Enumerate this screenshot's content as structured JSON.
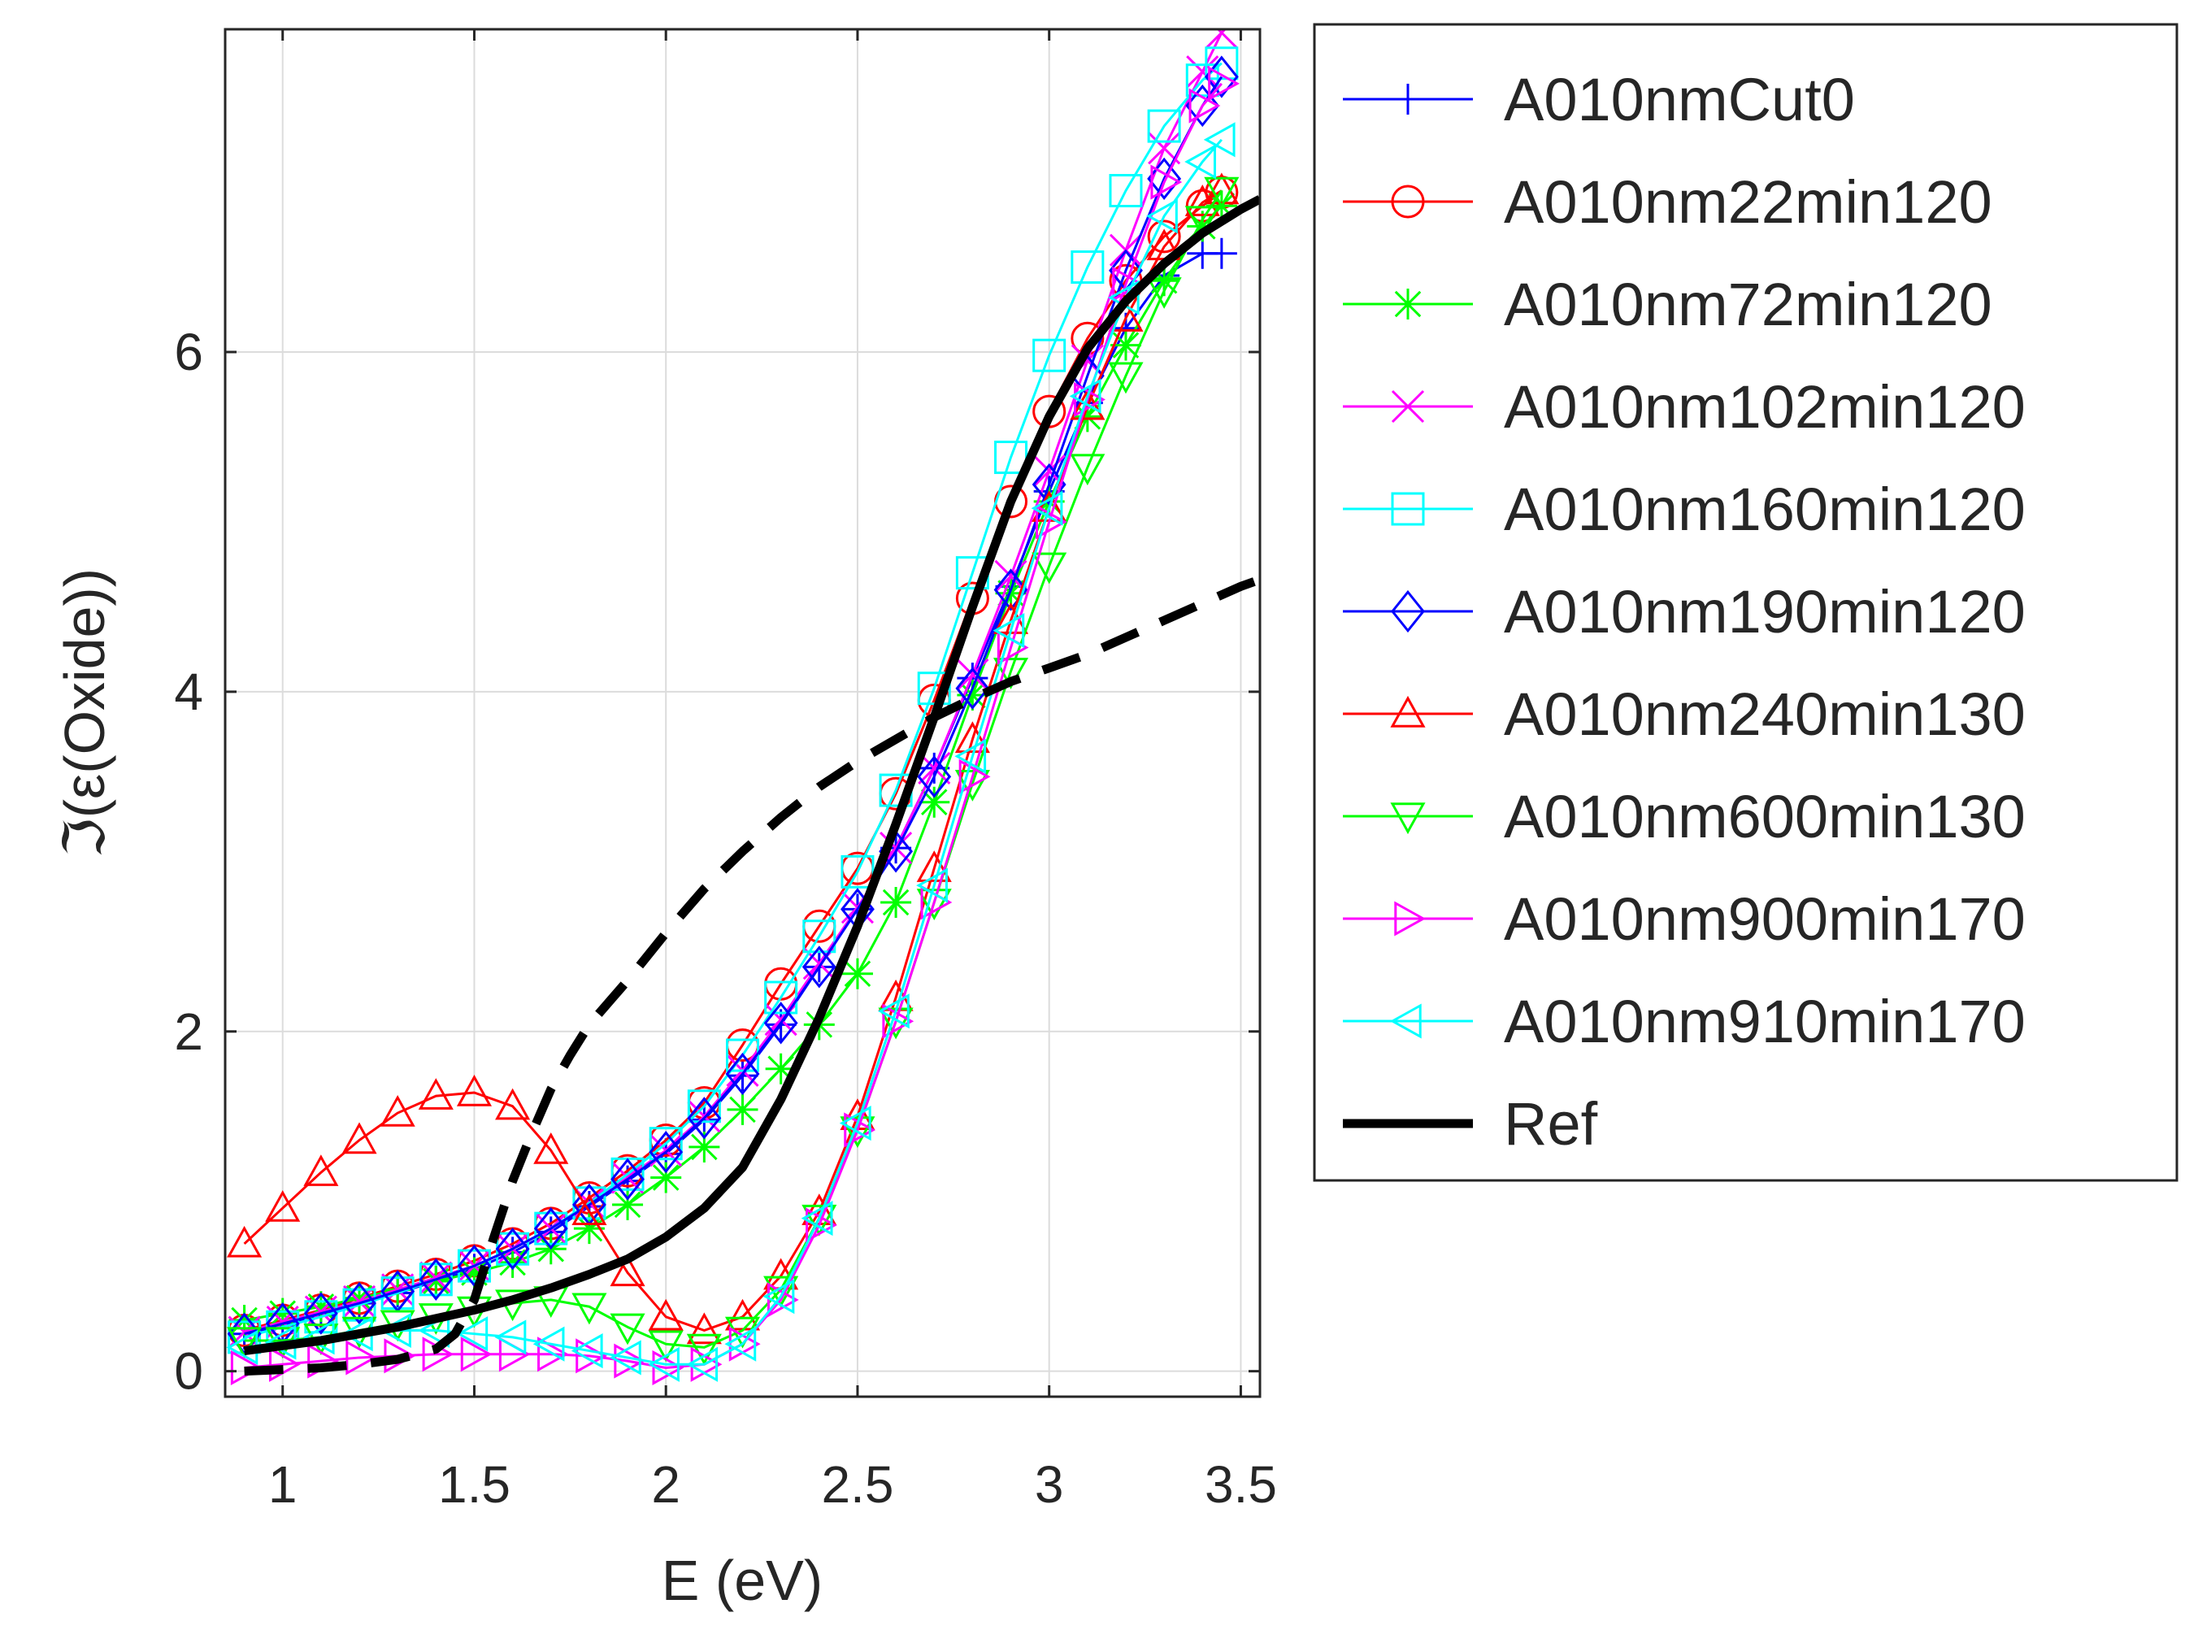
{
  "chart_data": {
    "type": "line",
    "title": "",
    "xlabel": "E (eV)",
    "ylabel": "ℑ(ε(Oxide))",
    "xlim": [
      0.85,
      3.55
    ],
    "ylim": [
      -0.15,
      7.9
    ],
    "xticks": [
      1,
      1.5,
      2,
      2.5,
      3,
      3.5
    ],
    "xtick_labels": [
      "1",
      "1.5",
      "2",
      "2.5",
      "3",
      "3.5"
    ],
    "yticks": [
      0,
      2,
      4,
      6
    ],
    "ytick_labels": [
      "0",
      "2",
      "4",
      "6"
    ],
    "grid": true,
    "legend_position": "outside-right",
    "x": [
      0.9,
      1.0,
      1.1,
      1.2,
      1.3,
      1.4,
      1.5,
      1.6,
      1.7,
      1.8,
      1.9,
      2.0,
      2.1,
      2.2,
      2.3,
      2.4,
      2.5,
      2.6,
      2.7,
      2.8,
      2.9,
      3.0,
      3.1,
      3.2,
      3.3,
      3.4,
      3.45
    ],
    "series": [
      {
        "name": "A010nmCut0",
        "color": "#0000ff",
        "marker": "plus",
        "values": [
          0.22,
          0.27,
          0.33,
          0.4,
          0.46,
          0.53,
          0.6,
          0.7,
          0.82,
          0.97,
          1.12,
          1.28,
          1.48,
          1.74,
          2.04,
          2.38,
          2.72,
          3.08,
          3.55,
          4.08,
          4.62,
          5.18,
          5.7,
          6.14,
          6.45,
          6.58,
          6.58
        ]
      },
      {
        "name": "A010nm22min120",
        "color": "#ff0000",
        "marker": "circle",
        "values": [
          0.24,
          0.3,
          0.36,
          0.43,
          0.5,
          0.57,
          0.65,
          0.75,
          0.87,
          1.02,
          1.18,
          1.36,
          1.58,
          1.92,
          2.28,
          2.62,
          2.96,
          3.4,
          3.95,
          4.55,
          5.12,
          5.65,
          6.08,
          6.42,
          6.68,
          6.86,
          6.94
        ]
      },
      {
        "name": "A010nm72min120",
        "color": "#00ff00",
        "marker": "asterisk",
        "values": [
          0.3,
          0.34,
          0.38,
          0.43,
          0.48,
          0.53,
          0.58,
          0.64,
          0.72,
          0.84,
          0.98,
          1.14,
          1.32,
          1.54,
          1.78,
          2.04,
          2.34,
          2.76,
          3.35,
          3.98,
          4.58,
          5.12,
          5.62,
          6.04,
          6.42,
          6.74,
          6.86
        ]
      },
      {
        "name": "A010nm102min120",
        "color": "#ff00ff",
        "marker": "x",
        "values": [
          0.23,
          0.29,
          0.35,
          0.41,
          0.48,
          0.55,
          0.62,
          0.72,
          0.84,
          0.99,
          1.14,
          1.3,
          1.5,
          1.77,
          2.07,
          2.4,
          2.73,
          3.08,
          3.55,
          4.1,
          4.68,
          5.3,
          5.95,
          6.6,
          7.2,
          7.65,
          7.88
        ]
      },
      {
        "name": "A010nm160min120",
        "color": "#00ffff",
        "marker": "square",
        "values": [
          0.2,
          0.26,
          0.32,
          0.39,
          0.46,
          0.54,
          0.62,
          0.72,
          0.84,
          0.99,
          1.16,
          1.34,
          1.56,
          1.86,
          2.2,
          2.56,
          2.94,
          3.42,
          4.02,
          4.7,
          5.38,
          5.98,
          6.5,
          6.95,
          7.33,
          7.6,
          7.7
        ]
      },
      {
        "name": "A010nm190min120",
        "color": "#0000ff",
        "marker": "diamond",
        "values": [
          0.22,
          0.28,
          0.34,
          0.4,
          0.47,
          0.54,
          0.62,
          0.72,
          0.84,
          0.98,
          1.13,
          1.29,
          1.49,
          1.75,
          2.05,
          2.38,
          2.72,
          3.06,
          3.5,
          4.02,
          4.6,
          5.22,
          5.86,
          6.48,
          7.02,
          7.45,
          7.62
        ]
      },
      {
        "name": "A010nm240min130",
        "color": "#ff0000",
        "marker": "triangle-up",
        "values": [
          0.75,
          0.96,
          1.17,
          1.36,
          1.52,
          1.62,
          1.64,
          1.56,
          1.3,
          0.94,
          0.58,
          0.32,
          0.24,
          0.32,
          0.56,
          0.94,
          1.5,
          2.2,
          2.96,
          3.72,
          4.42,
          5.08,
          5.68,
          6.2,
          6.62,
          6.88,
          6.95
        ]
      },
      {
        "name": "A010nm600min130",
        "color": "#00ff00",
        "marker": "triangle-down",
        "values": [
          0.18,
          0.18,
          0.2,
          0.24,
          0.28,
          0.32,
          0.36,
          0.4,
          0.42,
          0.38,
          0.26,
          0.16,
          0.14,
          0.24,
          0.48,
          0.9,
          1.42,
          2.06,
          2.76,
          3.46,
          4.12,
          4.74,
          5.32,
          5.86,
          6.36,
          6.78,
          6.95
        ]
      },
      {
        "name": "A010nm900min170",
        "color": "#ff00ff",
        "marker": "triangle-right",
        "values": [
          0.02,
          0.04,
          0.06,
          0.08,
          0.09,
          0.1,
          0.1,
          0.1,
          0.1,
          0.09,
          0.06,
          0.02,
          0.04,
          0.16,
          0.42,
          0.86,
          1.42,
          2.06,
          2.76,
          3.5,
          4.26,
          5.0,
          5.72,
          6.4,
          7.0,
          7.45,
          7.58
        ]
      },
      {
        "name": "A010nm910min170",
        "color": "#00ffff",
        "marker": "triangle-left",
        "values": [
          0.14,
          0.17,
          0.2,
          0.22,
          0.24,
          0.24,
          0.22,
          0.2,
          0.16,
          0.12,
          0.08,
          0.04,
          0.04,
          0.16,
          0.44,
          0.9,
          1.46,
          2.12,
          2.86,
          3.62,
          4.36,
          5.08,
          5.74,
          6.32,
          6.8,
          7.12,
          7.25
        ]
      },
      {
        "name": "Ref",
        "color": "#000000",
        "marker": "none",
        "line_style": "solid",
        "x": [
          0.9,
          1.0,
          1.1,
          1.2,
          1.3,
          1.4,
          1.5,
          1.6,
          1.7,
          1.8,
          1.9,
          2.0,
          2.1,
          2.2,
          2.3,
          2.4,
          2.5,
          2.6,
          2.7,
          2.8,
          2.9,
          3.0,
          3.1,
          3.2,
          3.3,
          3.4,
          3.5,
          3.55
        ],
        "values": [
          0.12,
          0.15,
          0.18,
          0.22,
          0.26,
          0.31,
          0.36,
          0.42,
          0.49,
          0.57,
          0.66,
          0.79,
          0.96,
          1.2,
          1.6,
          2.08,
          2.62,
          3.22,
          3.85,
          4.5,
          5.12,
          5.62,
          6.02,
          6.3,
          6.52,
          6.7,
          6.84,
          6.9
        ]
      },
      {
        "name": "",
        "color": "#000000",
        "marker": "none",
        "line_style": "dashed",
        "in_legend": false,
        "x": [
          0.9,
          1.0,
          1.1,
          1.2,
          1.3,
          1.4,
          1.45,
          1.5,
          1.55,
          1.6,
          1.65,
          1.7,
          1.75,
          1.8,
          1.9,
          2.0,
          2.1,
          2.2,
          2.3,
          2.4,
          2.5,
          2.6,
          2.7,
          2.8,
          2.9,
          3.0,
          3.1,
          3.2,
          3.3,
          3.4,
          3.5,
          3.55
        ],
        "values": [
          0.0,
          0.01,
          0.02,
          0.04,
          0.07,
          0.13,
          0.22,
          0.42,
          0.78,
          1.12,
          1.4,
          1.66,
          1.86,
          2.04,
          2.3,
          2.58,
          2.84,
          3.06,
          3.26,
          3.44,
          3.59,
          3.72,
          3.85,
          3.96,
          4.06,
          4.14,
          4.22,
          4.32,
          4.42,
          4.52,
          4.62,
          4.66
        ]
      }
    ]
  }
}
